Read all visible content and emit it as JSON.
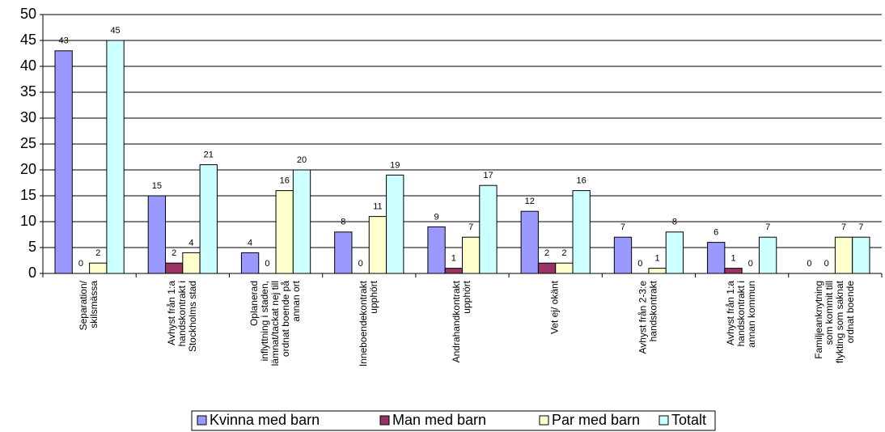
{
  "chart_data": {
    "type": "bar",
    "categories": [
      [
        "Separation/",
        "skilsmässa"
      ],
      [
        "Avhyst från 1:a",
        "handskontrakt i",
        "Stockholms stad"
      ],
      [
        "Oplanerad",
        "inflyttning i staden,",
        "lämnat/tackat nej till",
        "ordnat boende på",
        "annan ort"
      ],
      [
        "Inneboendekontrakt",
        "upphört"
      ],
      [
        "Andrahandkontrakt",
        "upphört"
      ],
      [
        "Vet ej/ okänt"
      ],
      [
        "Avhyst från 2-3:e",
        "handskontrakt"
      ],
      [
        "Avhyst från 1:a",
        "handskontrakt i",
        "annan kommun"
      ],
      [
        "Familjeanknytning",
        "som kommit till",
        "flykting som saknat",
        "ordnat boende"
      ]
    ],
    "series": [
      {
        "name": "Kvinna med barn",
        "color": "#9999ff",
        "values": [
          43,
          15,
          4,
          8,
          9,
          12,
          7,
          6,
          0
        ]
      },
      {
        "name": "Man med barn",
        "color": "#993366",
        "values": [
          0,
          2,
          0,
          0,
          1,
          2,
          0,
          1,
          0
        ]
      },
      {
        "name": "Par med barn",
        "color": "#ffffcc",
        "values": [
          2,
          4,
          16,
          11,
          7,
          2,
          1,
          0,
          7
        ]
      },
      {
        "name": "Totalt",
        "color": "#ccffff",
        "values": [
          45,
          21,
          20,
          19,
          17,
          16,
          8,
          7,
          7
        ]
      }
    ],
    "ylim": [
      0,
      50
    ],
    "yticks": [
      0,
      5,
      10,
      15,
      20,
      25,
      30,
      35,
      40,
      45,
      50
    ],
    "grid": true,
    "legend": "bottom"
  }
}
